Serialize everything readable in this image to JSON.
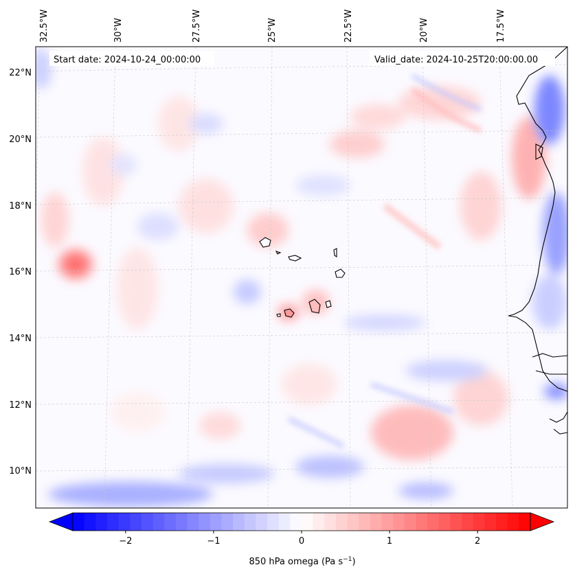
{
  "map": {
    "start_label": "Start date: 2024-10-24_00:00:00",
    "valid_label": "Valid_date: 2024-10-25T20:00:00.00",
    "lon_labels": [
      "32.5°W",
      "30°W",
      "27.5°W",
      "25°W",
      "22.5°W",
      "20°W",
      "17.5°W"
    ],
    "lat_labels": [
      "22°N",
      "20°N",
      "18°N",
      "16°N",
      "14°N",
      "12°N",
      "10°N"
    ],
    "colors": {
      "negative": "#0000ff",
      "zero": "#ffffff",
      "positive": "#ff0000",
      "coast": "#000000",
      "grid": "#bbbbbb"
    }
  },
  "colorbar": {
    "label": "850 hPa omega (Pa s",
    "label_exp": "−1",
    "label_close": ")",
    "vmin": -2.6,
    "vmax": 2.6,
    "ticks": [
      -2,
      -1,
      0,
      1,
      2
    ],
    "tick_labels": [
      "−2",
      "−1",
      "0",
      "1",
      "2"
    ]
  }
}
